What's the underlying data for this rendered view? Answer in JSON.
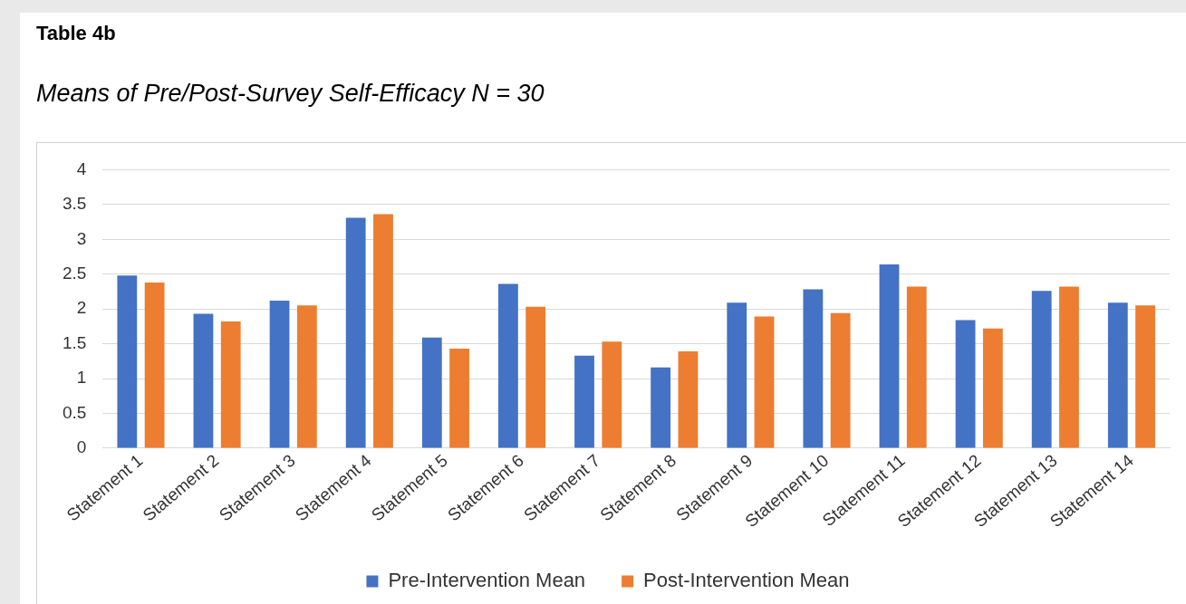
{
  "chart_data": {
    "type": "bar",
    "title": "Table 4b",
    "subtitle": "Means of Pre/Post-Survey Self-Efficacy N = 30",
    "categories": [
      "Statement 1",
      "Statement 2",
      "Statement 3",
      "Statement 4",
      "Statement 5",
      "Statement 6",
      "Statement 7",
      "Statement 8",
      "Statement 9",
      "Statement 10",
      "Statement 11",
      "Statement 12",
      "Statement 13",
      "Statement 14"
    ],
    "series": [
      {
        "name": "Pre-Intervention Mean",
        "color": "#4472c4",
        "values": [
          2.48,
          1.93,
          2.12,
          3.31,
          1.59,
          2.36,
          1.33,
          1.16,
          2.09,
          2.28,
          2.64,
          1.84,
          2.26,
          2.09
        ]
      },
      {
        "name": "Post-Intervention Mean",
        "color": "#ed7d31",
        "values": [
          2.38,
          1.82,
          2.05,
          3.36,
          1.43,
          2.03,
          1.53,
          1.39,
          1.89,
          1.94,
          2.32,
          1.72,
          2.32,
          2.05
        ]
      }
    ],
    "ylim": [
      0,
      4
    ],
    "yticks": [
      0,
      0.5,
      1,
      1.5,
      2,
      2.5,
      3,
      3.5,
      4
    ],
    "grid": "y",
    "legend": "bottom"
  }
}
